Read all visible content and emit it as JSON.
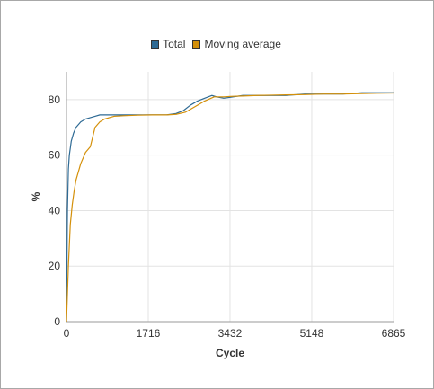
{
  "chart_data": {
    "type": "line",
    "xlabel": "Cycle",
    "ylabel": "%",
    "xlim": [
      0,
      6865
    ],
    "ylim": [
      0,
      90
    ],
    "x_ticks": [
      "0",
      "1716",
      "3432",
      "5148",
      "6865"
    ],
    "y_ticks": [
      "0",
      "20",
      "40",
      "60",
      "80"
    ],
    "grid": true,
    "legend_position": "top-center",
    "series": [
      {
        "name": "Total",
        "color": "#2e6a94",
        "x": [
          0,
          20,
          40,
          60,
          100,
          150,
          200,
          300,
          400,
          500,
          600,
          700,
          800,
          900,
          1000,
          1200,
          1500,
          1800,
          2100,
          2300,
          2450,
          2600,
          2750,
          2900,
          3050,
          3150,
          3300,
          3500,
          3700,
          4000,
          4300,
          4600,
          5000,
          5400,
          5800,
          6200,
          6500,
          6865
        ],
        "y": [
          0,
          40,
          55,
          60,
          65,
          68,
          70,
          72,
          73,
          73.5,
          74,
          74.5,
          74.5,
          74.5,
          74.5,
          74.5,
          74.5,
          74.5,
          74.5,
          75,
          76,
          78,
          79.5,
          80.5,
          81.5,
          81,
          80.5,
          81,
          81.5,
          81.5,
          81.5,
          81.5,
          82,
          82,
          82,
          82.5,
          82.5,
          82.5
        ]
      },
      {
        "name": "Moving average",
        "color": "#d4900a",
        "x": [
          0,
          40,
          80,
          120,
          160,
          200,
          250,
          300,
          400,
          500,
          600,
          700,
          800,
          900,
          1000,
          1200,
          1500,
          1800,
          2100,
          2300,
          2500,
          2700,
          2900,
          3100,
          3300,
          3500,
          3700,
          4000,
          4300,
          4600,
          5000,
          5400,
          5800,
          6200,
          6500,
          6865
        ],
        "y": [
          0,
          20,
          35,
          42,
          47,
          51,
          54,
          57,
          61,
          63,
          70,
          72,
          73,
          73.5,
          74,
          74.2,
          74.4,
          74.5,
          74.5,
          74.7,
          75.5,
          77.5,
          79.5,
          81,
          81,
          81.2,
          81.3,
          81.5,
          81.6,
          81.7,
          81.8,
          82,
          82,
          82.2,
          82.3,
          82.4
        ]
      }
    ]
  }
}
